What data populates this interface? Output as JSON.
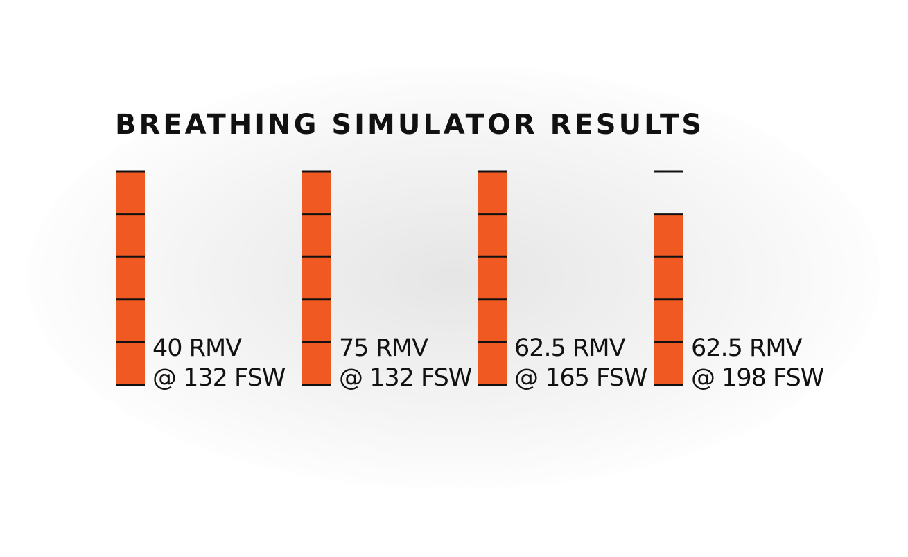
{
  "chart_data": {
    "type": "bar",
    "title": "BREATHING SIMULATOR RESULTS",
    "categories": [
      "40 RMV @ 132 FSW",
      "75 RMV @ 132 FSW",
      "62.5 RMV @ 165 FSW",
      "62.5 RMV @ 198 FSW"
    ],
    "label_lines": [
      [
        "40 RMV",
        "@ 132 FSW"
      ],
      [
        "75 RMV",
        "@ 132 FSW"
      ],
      [
        "62.5 RMV",
        "@ 165 FSW"
      ],
      [
        "62.5 RMV",
        "@ 198 FSW"
      ]
    ],
    "values": [
      5,
      5,
      5,
      4
    ],
    "ylim": [
      0,
      5
    ],
    "segments": 5,
    "bar_color": "#f05a22",
    "tick_color": "#111111",
    "grid": false,
    "xlabel": "",
    "ylabel": ""
  }
}
